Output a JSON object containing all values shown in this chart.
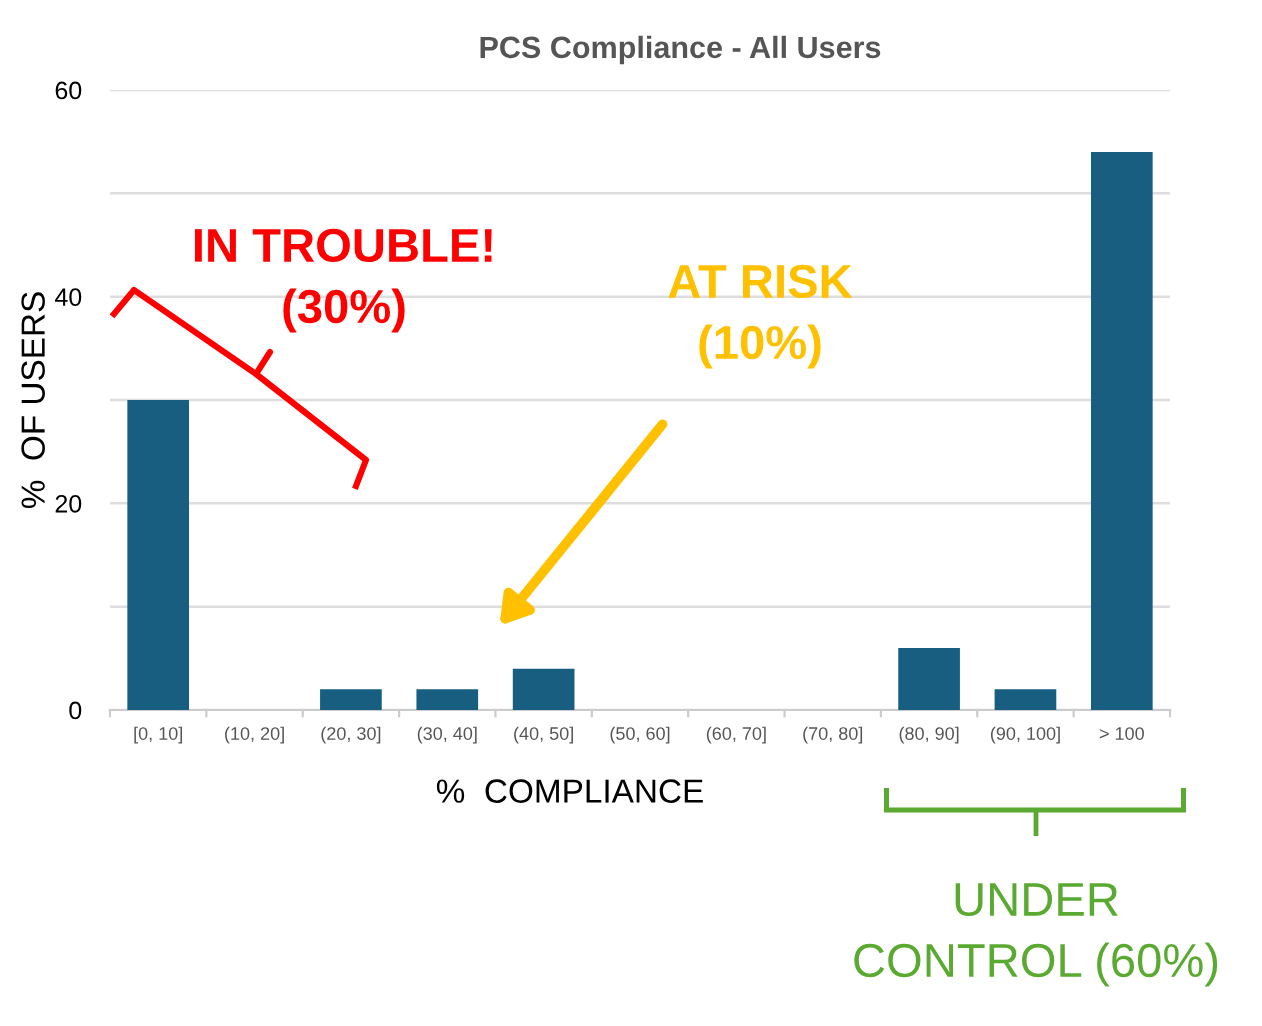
{
  "chart_data": {
    "type": "bar",
    "title": "PCS Compliance - All Users",
    "xlabel": "%  COMPLIANCE",
    "ylabel": "%  OF USERS",
    "categories": [
      "[0, 10]",
      "(10, 20]",
      "(20, 30]",
      "(30, 40]",
      "(40, 50]",
      "(50, 60]",
      "(60, 70]",
      "(70, 80]",
      "(80, 90]",
      "(90, 100]",
      "> 100"
    ],
    "values": [
      30,
      0,
      2,
      2,
      4,
      0,
      0,
      0,
      6,
      2,
      54
    ],
    "color": "#175e81",
    "ylim": [
      0,
      60
    ],
    "yticks": [
      0,
      {
        "value": 10,
        "label": null
      },
      20,
      {
        "value": 30,
        "label": null
      },
      40,
      {
        "value": 50,
        "label": null
      },
      60
    ],
    "grid": "y",
    "annotations": [
      "IN TROUBLE!\n(30%)",
      "AT RISK\n(10%)",
      "UNDER\nCONTROL (60%)"
    ]
  }
}
